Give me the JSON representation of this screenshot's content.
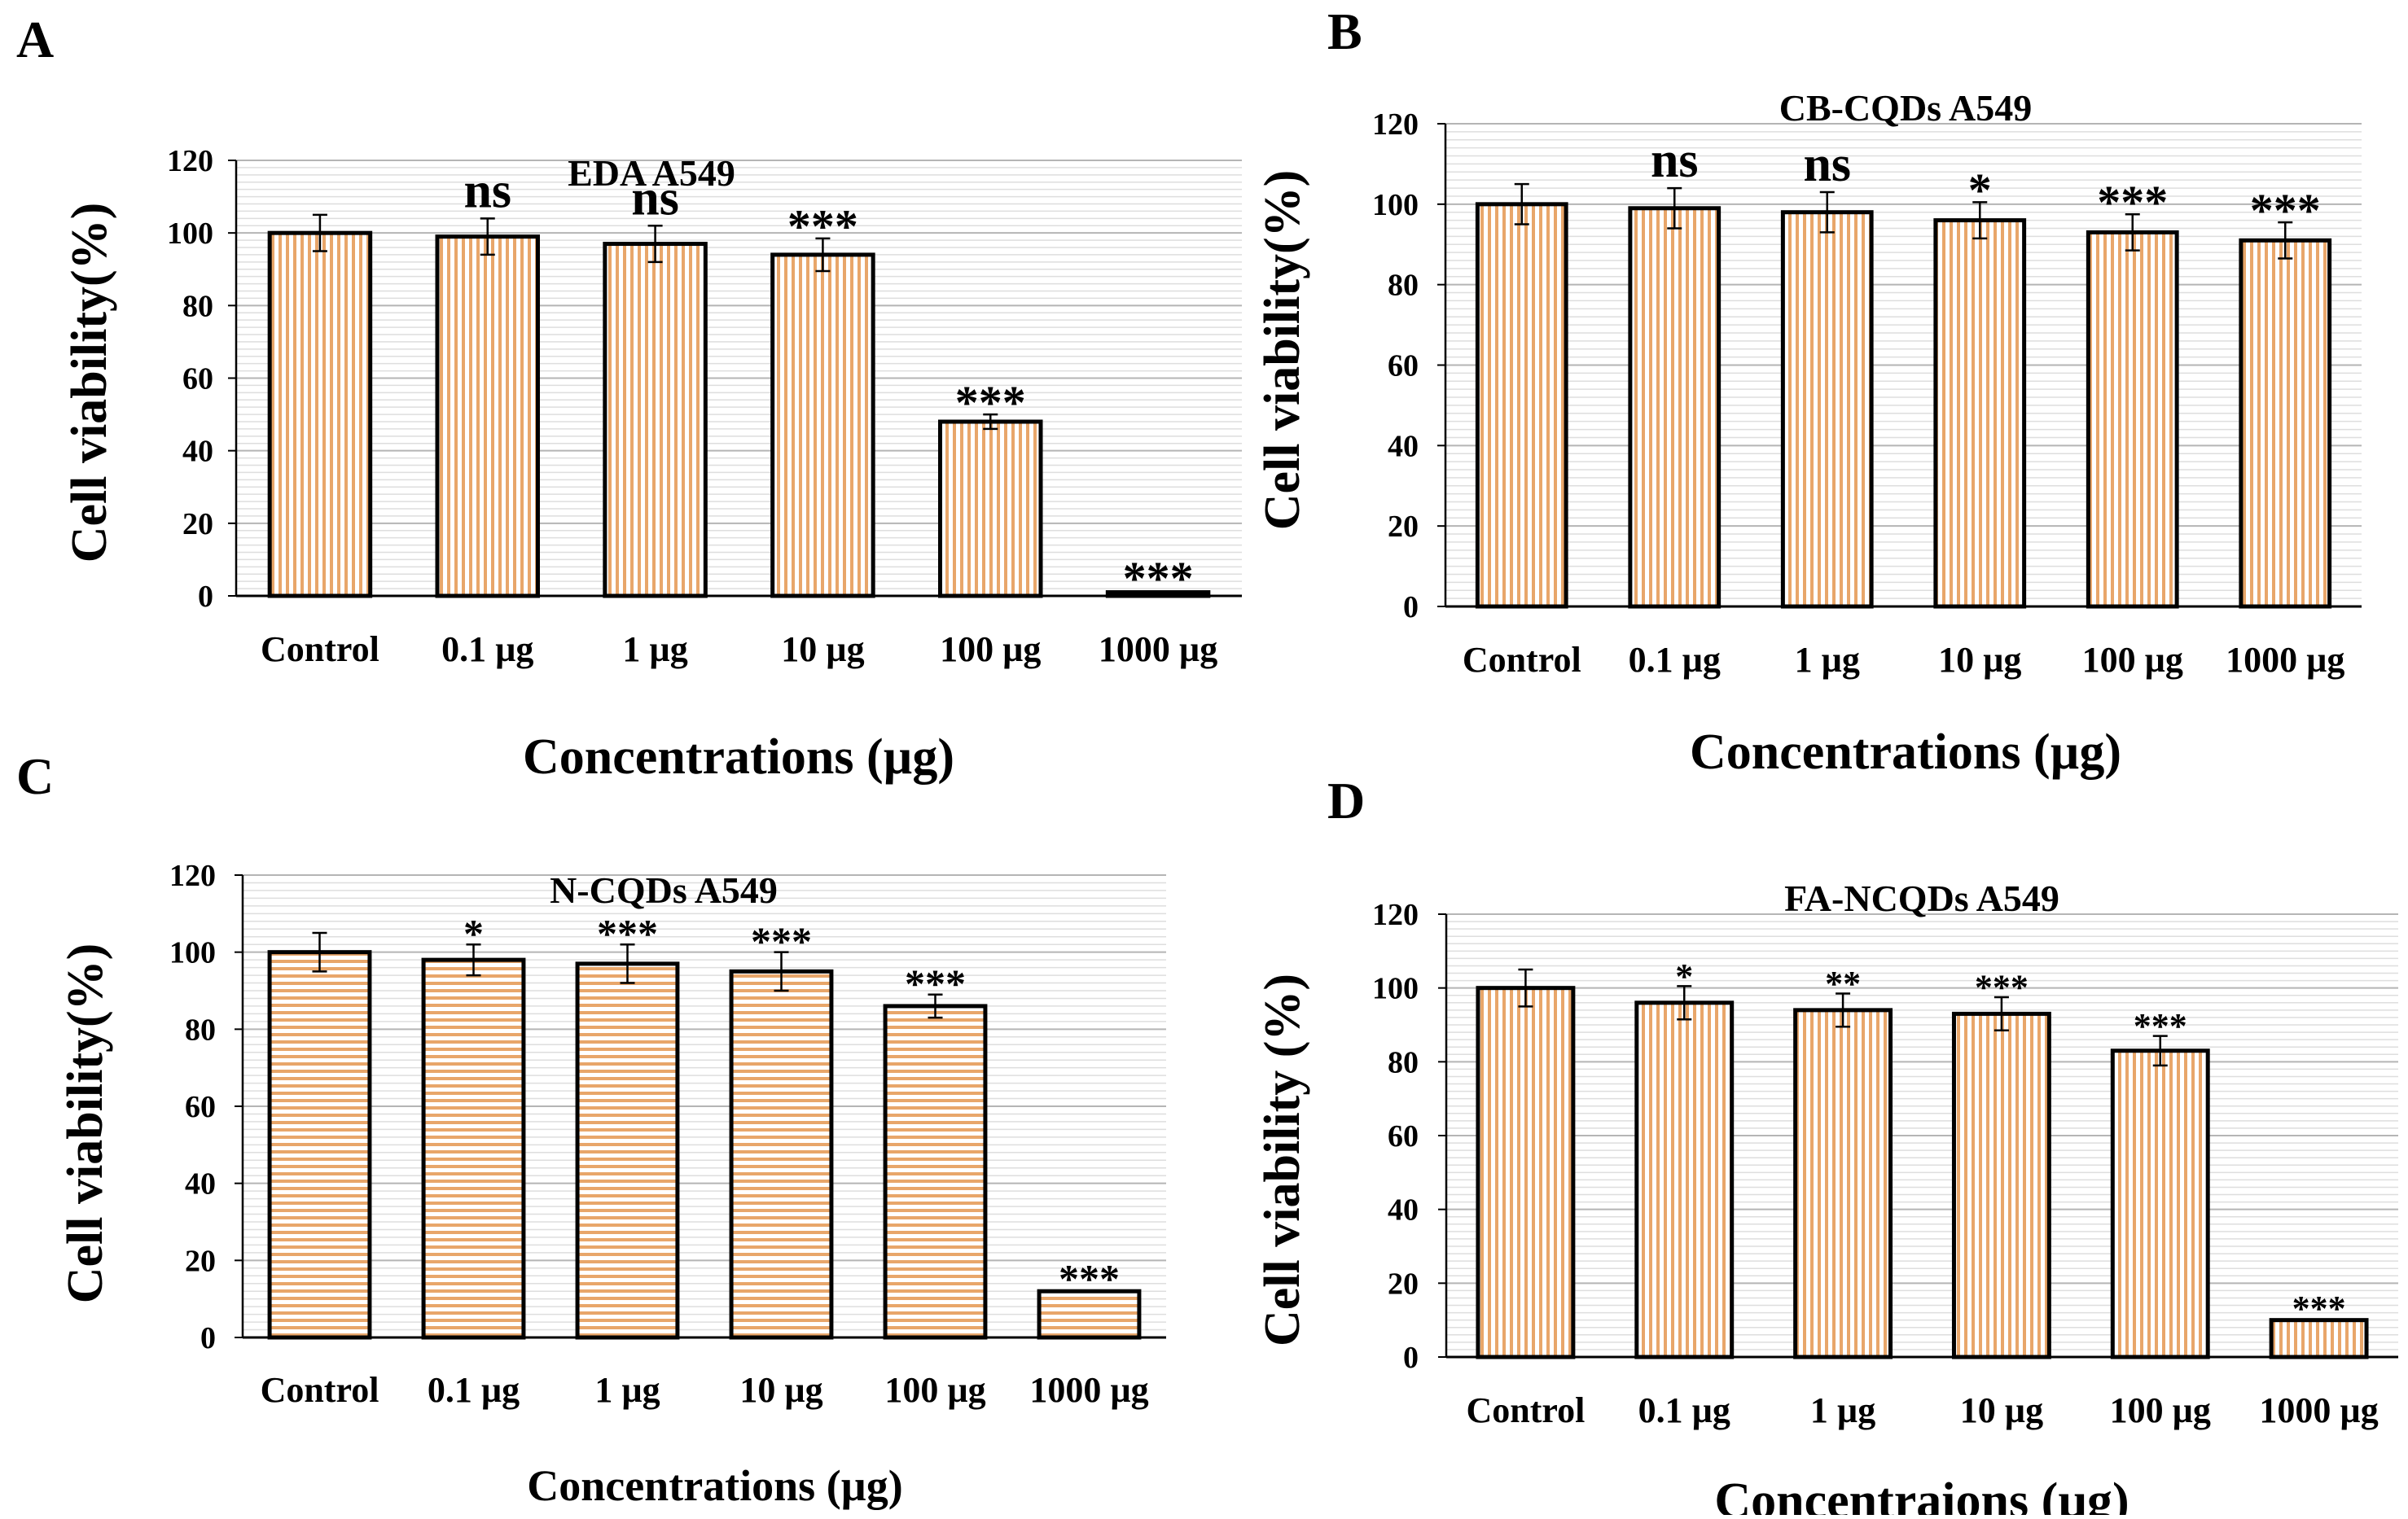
{
  "chart_data": [
    {
      "panel": "A",
      "type": "bar",
      "title": "EDA A549",
      "xlabel": "Concentrations (µg)",
      "ylabel": "Cell viability(%)",
      "ylim": [
        0,
        120
      ],
      "yticks": [
        0,
        20,
        40,
        60,
        80,
        100,
        120
      ],
      "grid": true,
      "stripes": "vertical",
      "categories": [
        "Control",
        "0.1 µg",
        "1 µg",
        "10 µg",
        "100 µg",
        "1000 µg"
      ],
      "values": [
        100,
        99,
        97,
        94,
        48,
        1
      ],
      "errors": [
        5,
        5,
        5,
        4.5,
        2,
        0.5
      ],
      "annotations": [
        "",
        "ns",
        "ns",
        "***",
        "***",
        "***"
      ]
    },
    {
      "panel": "B",
      "type": "bar",
      "title": "CB-CQDs A549",
      "xlabel": "Concentrations (µg)",
      "ylabel": "Cell viability(%)",
      "ylim": [
        0,
        120
      ],
      "yticks": [
        0,
        20,
        40,
        60,
        80,
        100,
        120
      ],
      "grid": true,
      "stripes": "vertical",
      "categories": [
        "Control",
        "0.1 µg",
        "1 µg",
        "10 µg",
        "100 µg",
        "1000 µg"
      ],
      "values": [
        100,
        99,
        98,
        96,
        93,
        91
      ],
      "errors": [
        5,
        5,
        5,
        4.5,
        4.5,
        4.5
      ],
      "annotations": [
        "",
        "ns",
        "ns",
        "*",
        "***",
        "***"
      ]
    },
    {
      "panel": "C",
      "type": "bar",
      "title": "N-CQDs A549",
      "xlabel": "Concentrations (µg)",
      "ylabel": "Cell viability(%)",
      "ylim": [
        0,
        120
      ],
      "yticks": [
        0,
        20,
        40,
        60,
        80,
        100,
        120
      ],
      "grid": true,
      "stripes": "horizontal",
      "categories": [
        "Control",
        "0.1 µg",
        "1 µg",
        "10 µg",
        "100 µg",
        "1000 µg"
      ],
      "values": [
        100,
        98,
        97,
        95,
        86,
        12
      ],
      "errors": [
        5,
        4,
        5,
        5,
        3,
        0.5
      ],
      "annotations": [
        "",
        "*",
        "***",
        "***",
        "***",
        "***"
      ]
    },
    {
      "panel": "D",
      "type": "bar",
      "title": "FA-NCQDs A549",
      "xlabel": "Concentraions (µg)",
      "ylabel": "Cell viability (%)",
      "ylim": [
        0,
        120
      ],
      "yticks": [
        0,
        20,
        40,
        60,
        80,
        100,
        120
      ],
      "grid": true,
      "stripes": "vertical",
      "categories": [
        "Control",
        "0.1 µg",
        "1 µg",
        "10 µg",
        "100 µg",
        "1000 µg"
      ],
      "values": [
        100,
        96,
        94,
        93,
        83,
        10
      ],
      "errors": [
        5,
        4.5,
        4.5,
        4.5,
        4,
        0.5
      ],
      "annotations": [
        "",
        "*",
        "**",
        "***",
        "***",
        "***"
      ]
    }
  ],
  "colors": {
    "bar_stripe": "#e8a66a",
    "bar_background": "#ffffff",
    "bar_outline": "#000000",
    "grid": "#c8c8c8",
    "axis": "#000000",
    "text": "#000000"
  }
}
